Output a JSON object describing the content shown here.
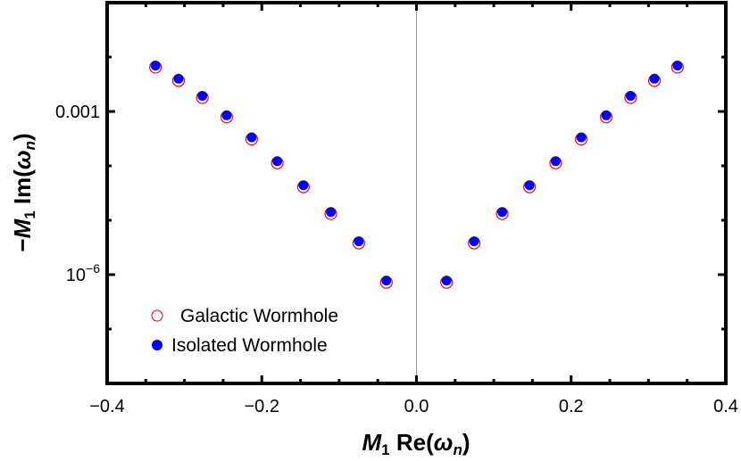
{
  "chart_data": {
    "type": "scatter",
    "xlabel": {
      "main": "M",
      "sub": "1",
      "rest": " Re(",
      "omega": "ω",
      "omega_sub": "n",
      "close": ")"
    },
    "ylabel": {
      "prefix": "−",
      "main": "M",
      "sub": "1",
      "rest": " Im(",
      "omega": "ω",
      "omega_sub": "n",
      "close": ")"
    },
    "xlim": [
      -0.4,
      0.4
    ],
    "ylim": [
      1e-08,
      0.1
    ],
    "yscale": "log",
    "grid": false,
    "x_tick_labels": [
      "−0.4",
      "−0.2",
      "0.0",
      "0.2",
      "0.4"
    ],
    "x_ticks": [
      -0.4,
      -0.2,
      0.0,
      0.2,
      0.4
    ],
    "y_tick_labels": [
      {
        "value": 0.001,
        "text": "0.001"
      },
      {
        "value": 1e-06,
        "base": "10",
        "exp": "−6"
      }
    ],
    "legend_position": "bottom-left",
    "series": [
      {
        "name": "Galactic Wormhole",
        "marker": "open-circle",
        "color": "#ff0000",
        "x": [
          -0.3375,
          -0.3077,
          -0.2769,
          -0.2454,
          -0.2131,
          -0.18,
          -0.1462,
          -0.1108,
          -0.0746,
          -0.0389,
          0.0389,
          0.0746,
          0.1108,
          0.1462,
          0.18,
          0.2131,
          0.2454,
          0.2769,
          0.3077,
          0.3375
        ],
        "y": [
          0.0065,
          0.0037,
          0.0018,
          0.00079,
          0.00031,
          0.000113,
          4.1e-05,
          1.32e-05,
          3.8e-06,
          7.2e-07,
          7.2e-07,
          3.8e-06,
          1.32e-05,
          4.1e-05,
          0.000113,
          0.00031,
          0.00079,
          0.0018,
          0.0037,
          0.0065
        ]
      },
      {
        "name": "Isolated Wormhole",
        "marker": "filled-circle",
        "color": "#0000ff",
        "x": [
          -0.3375,
          -0.3077,
          -0.2769,
          -0.2454,
          -0.2131,
          -0.18,
          -0.1462,
          -0.1108,
          -0.0746,
          -0.0389,
          0.0389,
          0.0746,
          0.1108,
          0.1462,
          0.18,
          0.2131,
          0.2454,
          0.2769,
          0.3077,
          0.3375
        ],
        "y": [
          0.007,
          0.004,
          0.00194,
          0.00085,
          0.000335,
          0.000122,
          4.4e-05,
          1.42e-05,
          4.1e-06,
          7.8e-07,
          7.8e-07,
          4.1e-06,
          1.42e-05,
          4.4e-05,
          0.000122,
          0.000335,
          0.00085,
          0.00194,
          0.004,
          0.007
        ]
      }
    ]
  }
}
